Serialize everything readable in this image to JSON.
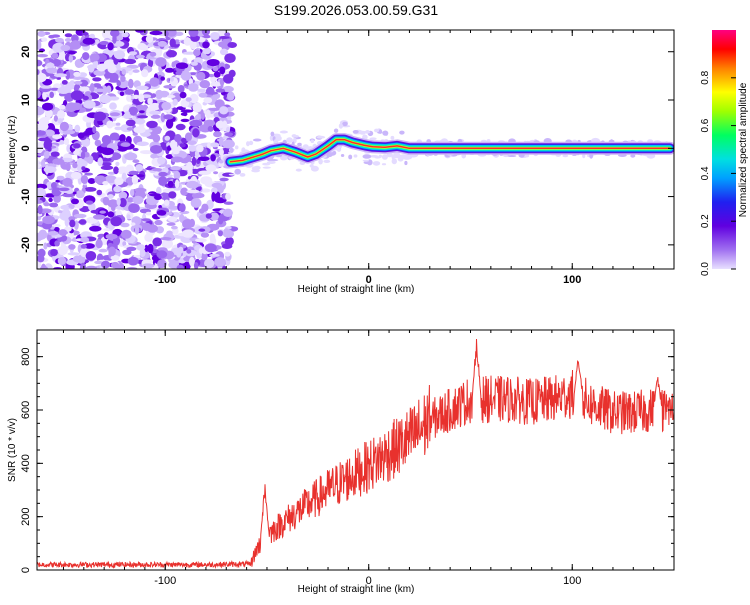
{
  "chart_data": [
    {
      "type": "heatmap",
      "title": "S199.2026.053.00.59.G31",
      "xlabel": "Height of straight line (km)",
      "ylabel": "Frequency (Hz)",
      "xlim": [
        -163,
        150
      ],
      "ylim": [
        -25,
        24.5
      ],
      "xticks": [
        -100,
        0,
        100
      ],
      "xtick_labels": [
        "-100",
        "0",
        "100"
      ],
      "yticks": [
        -20,
        -10,
        0,
        10,
        20
      ],
      "ytick_labels": [
        "-20",
        "-10",
        "0",
        "10",
        "20"
      ],
      "colorbar": {
        "label": "Normalized spectral amplitude",
        "range": [
          0,
          1
        ],
        "ticks": [
          0.0,
          0.2,
          0.4,
          0.6,
          0.8
        ],
        "tick_labels": [
          "0.0",
          "0.2",
          "0.4",
          "0.6",
          "0.8"
        ],
        "colors": [
          "#e8e0ff",
          "#a070f0",
          "#6000e0",
          "#2020f0",
          "#00a0ff",
          "#00e0e0",
          "#00ff60",
          "#a0ff00",
          "#ffff00",
          "#ff8000",
          "#ff0000",
          "#ff0080"
        ]
      },
      "noise_region": {
        "x": [
          -163,
          -67
        ],
        "y": [
          -25,
          24.5
        ],
        "amplitude": [
          0.0,
          0.2
        ]
      },
      "doppler_track": {
        "x": [
          -68,
          -62,
          -58,
          -52,
          -48,
          -42,
          -36,
          -30,
          -26,
          -20,
          -16,
          -12,
          -8,
          -2,
          2,
          8,
          14,
          20,
          40,
          60,
          80,
          100,
          120,
          148
        ],
        "y": [
          -2.8,
          -2.5,
          -2.0,
          -1.2,
          -0.5,
          0.0,
          -0.8,
          -1.8,
          -1.2,
          0.5,
          1.8,
          1.8,
          1.2,
          0.6,
          0.3,
          0.2,
          0.5,
          0.0,
          0.0,
          0.0,
          0.0,
          0.0,
          0.0,
          0.0
        ]
      }
    },
    {
      "type": "line",
      "title": "",
      "xlabel": "Height of straight line (km)",
      "ylabel": "SNR (10 * v/v)",
      "xlim": [
        -163,
        150
      ],
      "ylim": [
        0,
        900
      ],
      "xticks": [
        -100,
        0,
        100
      ],
      "xtick_labels": [
        "-100",
        "0",
        "100"
      ],
      "yticks": [
        0,
        200,
        400,
        600,
        800
      ],
      "ytick_labels": [
        "0",
        "200",
        "400",
        "600",
        "800"
      ],
      "color": "#e8312d",
      "trend": {
        "x": [
          -163,
          -80,
          -58,
          -55,
          -50,
          -40,
          -30,
          -20,
          -10,
          0,
          10,
          20,
          30,
          40,
          50,
          60,
          70,
          80,
          90,
          100,
          110,
          120,
          130,
          140,
          150
        ],
        "y": [
          20,
          20,
          22,
          80,
          130,
          190,
          245,
          300,
          345,
          390,
          440,
          490,
          560,
          600,
          640,
          640,
          640,
          630,
          640,
          660,
          620,
          590,
          590,
          600,
          600
        ]
      },
      "peaks": [
        {
          "x": -51,
          "y": 340
        },
        {
          "x": 53,
          "y": 890
        },
        {
          "x": 103,
          "y": 820
        },
        {
          "x": 142,
          "y": 740
        }
      ]
    }
  ]
}
